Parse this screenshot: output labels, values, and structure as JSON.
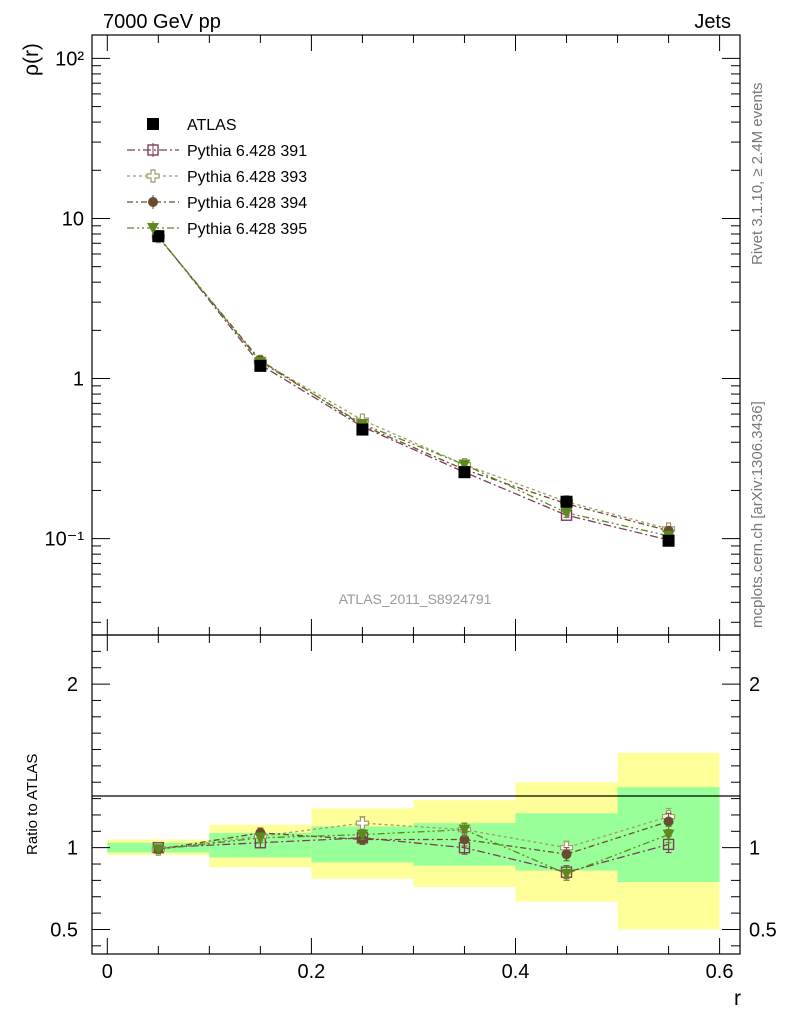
{
  "header": {
    "energy_label": "7000 GeV pp",
    "process_label": "Jets"
  },
  "side_labels": {
    "rivet": "Rivet 3.1.10, ≥ 2.4M events",
    "mcplots": "mcplots.cern.ch [arXiv:1306.3436]"
  },
  "watermark": "ATLAS_2011_S8924791",
  "colors": {
    "band_inner": "#99ff99",
    "band_outer": "#ffff99",
    "atlas": "#000000",
    "s391": "#7a3f5c",
    "s393": "#a39b6a",
    "s394": "#6b4c32",
    "s395": "#5c8a1e"
  },
  "chart_data": [
    {
      "type": "line",
      "name": "main",
      "ylabel": "ρ(r)",
      "yscale": "log",
      "ylim": [
        0.025,
        140
      ],
      "xlim": [
        -0.015,
        0.62
      ],
      "y_tick_labels": [
        "10⁻¹",
        "1",
        "10",
        "10²"
      ],
      "y_tick_values": [
        0.1,
        1,
        10,
        100
      ],
      "legend_position": "top-left",
      "x": [
        0.05,
        0.15,
        0.25,
        0.35,
        0.45,
        0.55
      ],
      "series": [
        {
          "name": "ATLAS",
          "marker": "filled-square",
          "values": [
            7.75,
            1.2,
            0.48,
            0.26,
            0.17,
            0.097
          ],
          "errors": [
            0.1,
            0.02,
            0.008,
            0.004,
            0.004,
            0.003
          ]
        },
        {
          "name": "Pythia 6.428 391",
          "marker": "open-square",
          "values": [
            7.75,
            1.22,
            0.5,
            0.26,
            0.14,
            0.098
          ],
          "errors": [
            0.06,
            0.02,
            0.01,
            0.006,
            0.004,
            0.004
          ]
        },
        {
          "name": "Pythia 6.428 393",
          "marker": "open-cross",
          "values": [
            7.7,
            1.28,
            0.55,
            0.29,
            0.17,
            0.115
          ],
          "errors": [
            0.06,
            0.02,
            0.012,
            0.007,
            0.005,
            0.004
          ]
        },
        {
          "name": "Pythia 6.428 394",
          "marker": "filled-circle",
          "values": [
            7.65,
            1.3,
            0.51,
            0.27,
            0.165,
            0.112
          ],
          "errors": [
            0.06,
            0.02,
            0.01,
            0.006,
            0.004,
            0.004
          ]
        },
        {
          "name": "Pythia 6.428 395",
          "marker": "filled-triangle-down",
          "values": [
            7.7,
            1.27,
            0.52,
            0.29,
            0.145,
            0.104
          ],
          "errors": [
            0.06,
            0.02,
            0.01,
            0.006,
            0.004,
            0.004
          ]
        }
      ]
    },
    {
      "type": "line",
      "name": "ratio",
      "ylabel": "Ratio to ATLAS",
      "xlabel": "r",
      "ylim": [
        0.35,
        2.3
      ],
      "xlim": [
        -0.015,
        0.62
      ],
      "x_tick_labels": [
        "0",
        "0.2",
        "0.4",
        "0.6"
      ],
      "x_tick_values": [
        0,
        0.2,
        0.4,
        0.6
      ],
      "y_tick_labels": [
        "0.5",
        "1",
        "2"
      ],
      "y_tick_values": [
        0.5,
        1,
        2
      ],
      "x_edges": [
        0.0,
        0.1,
        0.2,
        0.3,
        0.4,
        0.5,
        0.6
      ],
      "band_inner": [
        [
          0.97,
          1.03
        ],
        [
          0.94,
          1.09
        ],
        [
          0.91,
          1.13
        ],
        [
          0.89,
          1.15
        ],
        [
          0.86,
          1.21
        ],
        [
          0.79,
          1.37
        ]
      ],
      "band_outer": [
        [
          0.955,
          1.05
        ],
        [
          0.88,
          1.14
        ],
        [
          0.81,
          1.24
        ],
        [
          0.76,
          1.29
        ],
        [
          0.67,
          1.4
        ],
        [
          0.5,
          1.58
        ]
      ],
      "x": [
        0.05,
        0.15,
        0.25,
        0.35,
        0.45,
        0.55
      ],
      "series": [
        {
          "name": "Pythia 6.428 391",
          "marker": "open-square",
          "values": [
            1.0,
            1.03,
            1.06,
            1.0,
            0.85,
            1.02
          ],
          "errors": [
            0.01,
            0.03,
            0.03,
            0.04,
            0.04,
            0.05
          ]
        },
        {
          "name": "Pythia 6.428 393",
          "marker": "open-cross",
          "values": [
            0.99,
            1.07,
            1.15,
            1.11,
            1.0,
            1.19
          ],
          "errors": [
            0.01,
            0.03,
            0.04,
            0.04,
            0.04,
            0.05
          ]
        },
        {
          "name": "Pythia 6.428 394",
          "marker": "filled-circle",
          "values": [
            0.99,
            1.09,
            1.05,
            1.05,
            0.96,
            1.16
          ],
          "errors": [
            0.01,
            0.03,
            0.03,
            0.04,
            0.04,
            0.05
          ]
        },
        {
          "name": "Pythia 6.428 395",
          "marker": "filled-triangle-down",
          "values": [
            0.99,
            1.06,
            1.08,
            1.11,
            0.84,
            1.08
          ],
          "errors": [
            0.01,
            0.03,
            0.03,
            0.04,
            0.04,
            0.05
          ]
        }
      ]
    }
  ]
}
